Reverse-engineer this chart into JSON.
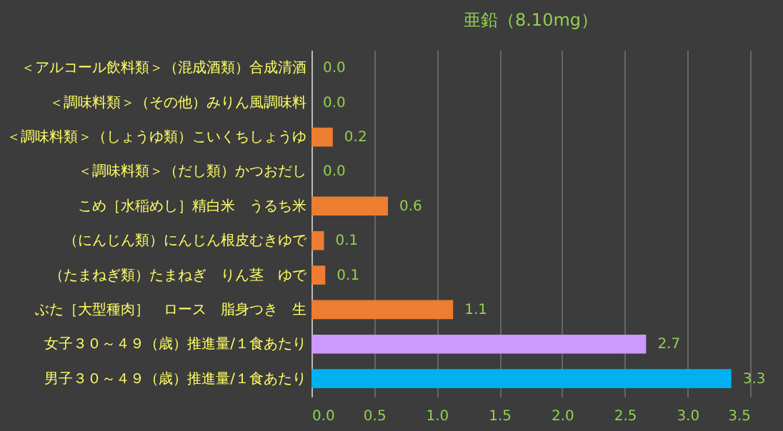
{
  "chart_data": {
    "type": "bar",
    "orientation": "horizontal",
    "title": "亜鉛（8.10mg）",
    "categories": [
      "＜アルコール飲料類＞（混成酒類）合成清酒",
      "＜調味料類＞（その他）みりん風調味料",
      "＜調味料類＞（しょうゆ類）こいくちしょうゆ",
      "＜調味料類＞（だし類）かつおだし",
      "こめ［水稲めし］精白米　うるち米",
      "（にんじん類）にんじん根皮むきゆで",
      "（たまねぎ類）たまねぎ　りん茎　ゆで",
      "ぶた［大型種肉］　ロース　脂身つき　生",
      "女子３０～４９（歳）推進量/１食あたり",
      "男子３０～４９（歳）推進量/１食あたり"
    ],
    "values": [
      0,
      0,
      0.17,
      0,
      0.61,
      0.1,
      0.11,
      1.13,
      2.67,
      3.35
    ],
    "value_labels": [
      "0.0",
      "0.0",
      "0.2",
      "0.0",
      "0.6",
      "0.1",
      "0.1",
      "1.1",
      "2.7",
      "3.3"
    ],
    "colors": [
      "#ed7d31",
      "#ed7d31",
      "#ed7d31",
      "#ed7d31",
      "#ed7d31",
      "#ed7d31",
      "#ed7d31",
      "#ed7d31",
      "#cc99ff",
      "#00b0f0"
    ],
    "xlim": [
      0,
      3.5
    ],
    "xticks": [
      {
        "value": 0,
        "label": "0.0"
      },
      0.5,
      {
        "value": 1,
        "label": "1.0"
      },
      1.5,
      {
        "value": 2,
        "label": "2.0"
      },
      2.5,
      {
        "value": 3,
        "label": "3.0"
      },
      3.5
    ],
    "grid": "x"
  }
}
